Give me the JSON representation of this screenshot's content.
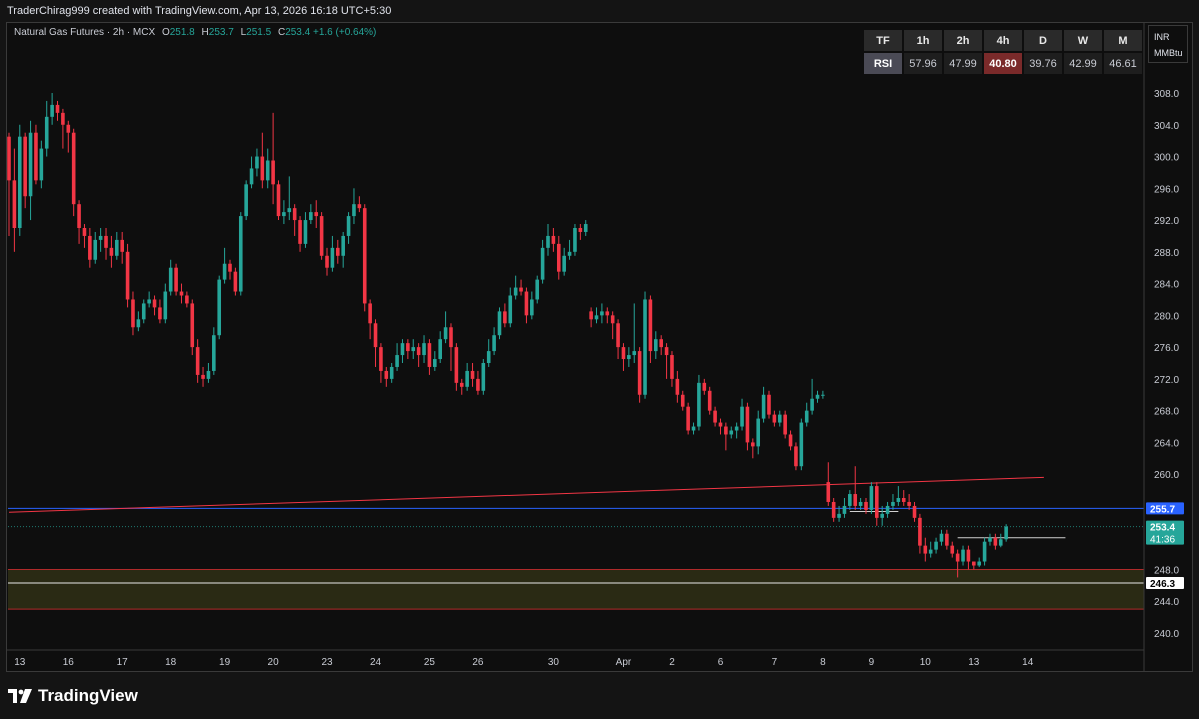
{
  "header": {
    "text": "TraderChirag999 created with TradingView.com, Apr 13, 2026 16:18 UTC+5:30"
  },
  "legend": {
    "symbol": "Natural Gas Futures · 2h · MCX",
    "open_label": "O",
    "open": "251.8",
    "high_label": "H",
    "high": "253.7",
    "low_label": "L",
    "low": "251.5",
    "close_label": "C",
    "close": "253.4",
    "change": "+1.6 (+0.64%)"
  },
  "rsi_table": {
    "header": [
      "TF",
      "1h",
      "2h",
      "4h",
      "D",
      "W",
      "M"
    ],
    "row_label": "RSI",
    "values": [
      "57.96",
      "47.99",
      "40.80",
      "39.76",
      "42.99",
      "46.61"
    ],
    "highlight_index": 3
  },
  "currency": {
    "ccy": "INR",
    "unit": "MMBtu"
  },
  "footer": {
    "brand": "TradingView"
  },
  "colors": {
    "up": "#26a69a",
    "down": "#f23645",
    "blue_line": "#2962ff",
    "trend_line": "#f23645",
    "zone_fill": "#2a2a14",
    "zone_border": "#b02a2a"
  },
  "chart_data": {
    "type": "candlestick",
    "ylim": [
      238,
      312
    ],
    "y_ticks": [
      308,
      304,
      300,
      296,
      292,
      288,
      284,
      280,
      276,
      272,
      268,
      264,
      260,
      248,
      244,
      240
    ],
    "x_ticks": [
      {
        "label": "13",
        "i": 2
      },
      {
        "label": "16",
        "i": 11
      },
      {
        "label": "17",
        "i": 21
      },
      {
        "label": "18",
        "i": 30
      },
      {
        "label": "19",
        "i": 40
      },
      {
        "label": "20",
        "i": 49
      },
      {
        "label": "23",
        "i": 59
      },
      {
        "label": "24",
        "i": 68
      },
      {
        "label": "25",
        "i": 78
      },
      {
        "label": "26",
        "i": 87
      },
      {
        "label": "30",
        "i": 101
      },
      {
        "label": "Apr",
        "i": 114
      },
      {
        "label": "2",
        "i": 123
      },
      {
        "label": "6",
        "i": 132
      },
      {
        "label": "7",
        "i": 142
      },
      {
        "label": "8",
        "i": 151
      },
      {
        "label": "9",
        "i": 160
      },
      {
        "label": "10",
        "i": 170
      },
      {
        "label": "13",
        "i": 179
      },
      {
        "label": "14",
        "i": 189
      }
    ],
    "candles": [
      [
        302.5,
        297.0,
        303.0,
        290.0
      ],
      [
        297.0,
        291.0,
        301.0,
        288.0
      ],
      [
        291.0,
        302.5,
        304.0,
        290.0
      ],
      [
        302.5,
        295.0,
        303.0,
        293.5
      ],
      [
        295.0,
        303.0,
        304.5,
        292.0
      ],
      [
        303.0,
        297.0,
        304.0,
        296.5
      ],
      [
        297.0,
        301.0,
        302.0,
        296.0
      ],
      [
        301.0,
        305.0,
        307.0,
        300.0
      ],
      [
        305.0,
        306.5,
        308.0,
        304.0
      ],
      [
        306.5,
        305.5,
        307.0,
        304.5
      ],
      [
        305.5,
        304.0,
        306.0,
        301.0
      ],
      [
        304.0,
        303.0,
        304.5,
        300.5
      ],
      [
        303.0,
        294.0,
        303.5,
        292.5
      ],
      [
        294.0,
        291.0,
        294.5,
        289.0
      ],
      [
        291.0,
        290.0,
        291.5,
        288.5
      ],
      [
        290.0,
        287.0,
        291.0,
        286.0
      ],
      [
        287.0,
        289.5,
        290.5,
        286.5
      ],
      [
        289.5,
        290.0,
        291.0,
        288.0
      ],
      [
        290.0,
        288.5,
        291.0,
        287.0
      ],
      [
        288.5,
        287.5,
        290.0,
        286.0
      ],
      [
        287.5,
        289.5,
        290.5,
        287.0
      ],
      [
        289.5,
        288.0,
        290.5,
        286.5
      ],
      [
        288.0,
        282.0,
        289.0,
        281.0
      ],
      [
        282.0,
        278.5,
        283.0,
        277.5
      ],
      [
        278.5,
        279.5,
        280.5,
        278.0
      ],
      [
        279.5,
        281.5,
        282.0,
        279.0
      ],
      [
        281.5,
        282.0,
        283.0,
        281.0
      ],
      [
        282.0,
        281.0,
        282.5,
        280.0
      ],
      [
        281.0,
        279.5,
        282.0,
        279.0
      ],
      [
        279.5,
        283.0,
        284.0,
        279.0
      ],
      [
        283.0,
        286.0,
        287.0,
        282.5
      ],
      [
        286.0,
        283.0,
        286.5,
        282.5
      ],
      [
        283.0,
        282.5,
        284.0,
        281.5
      ],
      [
        282.5,
        281.5,
        283.0,
        281.0
      ],
      [
        281.5,
        276.0,
        282.0,
        275.0
      ],
      [
        276.0,
        272.5,
        277.0,
        271.5
      ],
      [
        272.5,
        272.0,
        273.5,
        271.0
      ],
      [
        272.0,
        273.0,
        274.0,
        271.5
      ],
      [
        273.0,
        277.5,
        278.5,
        272.5
      ],
      [
        277.5,
        284.5,
        285.0,
        277.0
      ],
      [
        284.5,
        286.5,
        288.5,
        284.0
      ],
      [
        286.5,
        285.5,
        287.0,
        284.5
      ],
      [
        285.5,
        283.0,
        286.0,
        282.5
      ],
      [
        283.0,
        292.5,
        293.0,
        282.5
      ],
      [
        292.5,
        296.5,
        297.0,
        292.0
      ],
      [
        296.5,
        298.5,
        300.0,
        296.0
      ],
      [
        298.5,
        300.0,
        301.0,
        297.5
      ],
      [
        300.0,
        297.0,
        303.0,
        296.0
      ],
      [
        297.0,
        299.5,
        301.0,
        296.0
      ],
      [
        299.5,
        296.5,
        305.5,
        294.0
      ],
      [
        296.5,
        292.5,
        297.0,
        292.0
      ],
      [
        292.5,
        293.0,
        294.5,
        291.5
      ],
      [
        293.0,
        293.5,
        297.5,
        292.0
      ],
      [
        293.5,
        292.0,
        294.0,
        290.0
      ],
      [
        292.0,
        289.0,
        292.5,
        288.0
      ],
      [
        289.0,
        292.0,
        293.0,
        288.5
      ],
      [
        292.0,
        293.0,
        294.0,
        291.5
      ],
      [
        293.0,
        292.5,
        294.5,
        291.0
      ],
      [
        292.5,
        287.5,
        293.0,
        287.0
      ],
      [
        287.5,
        286.0,
        288.5,
        285.0
      ],
      [
        286.0,
        288.5,
        290.0,
        285.5
      ],
      [
        288.5,
        287.5,
        289.5,
        286.5
      ],
      [
        287.5,
        290.0,
        290.5,
        286.0
      ],
      [
        290.0,
        292.5,
        293.0,
        289.0
      ],
      [
        292.5,
        294.0,
        296.0,
        291.5
      ],
      [
        294.0,
        293.5,
        295.0,
        293.0
      ],
      [
        293.5,
        281.5,
        294.0,
        280.5
      ],
      [
        281.5,
        279.0,
        282.0,
        277.0
      ],
      [
        279.0,
        276.0,
        279.5,
        273.5
      ],
      [
        276.0,
        273.0,
        276.5,
        271.5
      ],
      [
        273.0,
        272.0,
        273.5,
        271.0
      ],
      [
        272.0,
        273.5,
        274.0,
        271.5
      ],
      [
        273.5,
        275.0,
        276.5,
        273.0
      ],
      [
        275.0,
        276.5,
        277.0,
        274.0
      ],
      [
        276.5,
        275.5,
        277.0,
        274.5
      ],
      [
        275.5,
        276.0,
        277.0,
        274.5
      ],
      [
        276.0,
        275.0,
        276.5,
        273.5
      ],
      [
        275.0,
        276.5,
        277.5,
        274.0
      ],
      [
        276.5,
        273.5,
        277.0,
        272.5
      ],
      [
        273.5,
        274.5,
        275.5,
        273.0
      ],
      [
        274.5,
        277.0,
        278.0,
        274.0
      ],
      [
        277.0,
        278.5,
        280.5,
        276.5
      ],
      [
        278.5,
        276.0,
        279.0,
        273.0
      ],
      [
        276.0,
        271.5,
        276.5,
        270.5
      ],
      [
        271.5,
        271.0,
        272.0,
        270.0
      ],
      [
        271.0,
        273.0,
        274.0,
        270.5
      ],
      [
        273.0,
        272.0,
        274.0,
        271.0
      ],
      [
        272.0,
        270.5,
        273.0,
        270.0
      ],
      [
        270.5,
        274.0,
        274.5,
        270.0
      ],
      [
        274.0,
        275.5,
        277.0,
        273.5
      ],
      [
        275.5,
        277.5,
        278.5,
        275.0
      ],
      [
        277.5,
        280.5,
        281.0,
        277.0
      ],
      [
        280.5,
        279.0,
        281.5,
        278.5
      ],
      [
        279.0,
        282.5,
        283.5,
        278.5
      ],
      [
        282.5,
        283.5,
        285.0,
        282.0
      ],
      [
        283.5,
        283.0,
        284.5,
        282.5
      ],
      [
        283.0,
        280.0,
        283.5,
        279.0
      ],
      [
        280.0,
        282.0,
        283.0,
        279.5
      ],
      [
        282.0,
        284.5,
        285.0,
        281.5
      ],
      [
        284.5,
        288.5,
        289.5,
        284.0
      ],
      [
        288.5,
        290.0,
        291.5,
        287.5
      ],
      [
        290.0,
        289.0,
        291.0,
        288.0
      ],
      [
        289.0,
        285.5,
        290.0,
        284.5
      ],
      [
        285.5,
        287.5,
        288.5,
        285.0
      ],
      [
        287.5,
        288.0,
        289.5,
        287.0
      ],
      [
        288.0,
        291.0,
        291.5,
        287.5
      ],
      [
        291.0,
        290.5,
        291.5,
        289.5
      ],
      [
        290.5,
        291.5,
        292.0,
        290.0
      ],
      [
        280.5,
        279.5,
        281.0,
        278.5
      ],
      [
        279.5,
        280.0,
        281.0,
        279.0
      ],
      [
        280.0,
        280.5,
        281.5,
        279.0
      ],
      [
        280.5,
        280.0,
        281.0,
        279.0
      ],
      [
        280.0,
        279.0,
        280.5,
        277.0
      ],
      [
        279.0,
        276.0,
        279.5,
        274.5
      ],
      [
        276.0,
        274.5,
        276.5,
        273.0
      ],
      [
        274.5,
        275.0,
        276.0,
        273.5
      ],
      [
        275.0,
        275.5,
        281.5,
        274.0
      ],
      [
        275.5,
        270.0,
        276.0,
        269.0
      ],
      [
        270.0,
        282.0,
        283.0,
        269.5
      ],
      [
        282.0,
        275.5,
        282.5,
        274.0
      ],
      [
        275.5,
        277.0,
        278.0,
        274.5
      ],
      [
        277.0,
        276.0,
        277.5,
        275.0
      ],
      [
        276.0,
        275.0,
        276.5,
        272.0
      ],
      [
        275.0,
        272.0,
        275.5,
        271.0
      ],
      [
        272.0,
        270.0,
        273.0,
        269.0
      ],
      [
        270.0,
        268.5,
        270.5,
        268.0
      ],
      [
        268.5,
        265.5,
        269.0,
        265.0
      ],
      [
        265.5,
        266.0,
        266.5,
        265.0
      ],
      [
        266.0,
        271.5,
        272.5,
        265.5
      ],
      [
        271.5,
        270.5,
        272.0,
        270.0
      ],
      [
        270.5,
        268.0,
        271.0,
        267.5
      ],
      [
        268.0,
        266.5,
        268.5,
        266.0
      ],
      [
        266.5,
        266.0,
        267.0,
        265.0
      ],
      [
        266.0,
        265.0,
        266.5,
        263.0
      ],
      [
        265.0,
        265.5,
        266.0,
        264.5
      ],
      [
        265.5,
        266.0,
        266.5,
        264.5
      ],
      [
        266.0,
        268.5,
        269.5,
        265.5
      ],
      [
        268.5,
        264.0,
        269.0,
        263.0
      ],
      [
        264.0,
        263.5,
        264.5,
        262.0
      ],
      [
        263.5,
        267.0,
        268.0,
        262.5
      ],
      [
        267.0,
        270.0,
        271.0,
        266.5
      ],
      [
        270.0,
        267.5,
        270.5,
        267.0
      ],
      [
        267.5,
        266.5,
        268.0,
        266.0
      ],
      [
        266.5,
        267.5,
        268.0,
        266.0
      ],
      [
        267.5,
        265.0,
        268.0,
        264.5
      ],
      [
        265.0,
        263.5,
        265.5,
        263.0
      ],
      [
        263.5,
        261.0,
        264.0,
        260.5
      ],
      [
        261.0,
        266.5,
        267.0,
        260.5
      ],
      [
        266.5,
        268.0,
        269.0,
        266.0
      ],
      [
        268.0,
        269.5,
        272.0,
        267.5
      ],
      [
        269.5,
        270.0,
        270.5,
        269.0
      ],
      [
        270.0,
        270.0,
        270.5,
        269.5
      ],
      [
        259.0,
        256.5,
        261.5,
        256.0
      ],
      [
        256.5,
        254.5,
        257.0,
        254.0
      ],
      [
        254.5,
        255.0,
        256.0,
        254.0
      ],
      [
        255.0,
        256.0,
        257.0,
        254.5
      ],
      [
        256.0,
        257.5,
        258.0,
        255.5
      ],
      [
        257.5,
        256.0,
        261.0,
        255.5
      ],
      [
        256.0,
        256.5,
        257.0,
        255.5
      ],
      [
        256.5,
        255.5,
        257.0,
        255.0
      ],
      [
        255.5,
        258.5,
        259.0,
        255.0
      ],
      [
        258.5,
        254.5,
        259.0,
        253.5
      ],
      [
        254.5,
        255.0,
        256.0,
        253.5
      ],
      [
        255.0,
        256.0,
        256.5,
        254.5
      ],
      [
        256.0,
        256.5,
        257.5,
        255.5
      ],
      [
        256.5,
        257.0,
        258.5,
        256.0
      ],
      [
        257.0,
        256.5,
        258.0,
        256.0
      ],
      [
        256.5,
        256.0,
        257.5,
        255.5
      ],
      [
        256.0,
        254.5,
        256.5,
        254.0
      ],
      [
        254.5,
        251.0,
        255.0,
        250.0
      ],
      [
        251.0,
        250.0,
        252.0,
        249.0
      ],
      [
        250.0,
        250.5,
        251.5,
        249.5
      ],
      [
        250.5,
        251.5,
        252.0,
        250.0
      ],
      [
        251.5,
        252.5,
        253.0,
        251.0
      ],
      [
        252.5,
        251.0,
        253.0,
        250.5
      ],
      [
        251.0,
        250.0,
        251.5,
        249.5
      ],
      [
        250.0,
        249.0,
        250.5,
        247.0
      ],
      [
        249.0,
        250.5,
        251.0,
        248.5
      ],
      [
        250.5,
        249.0,
        251.0,
        248.0
      ],
      [
        249.0,
        248.5,
        249.0,
        248.0
      ],
      [
        248.5,
        249.0,
        249.5,
        248.3
      ],
      [
        249.0,
        251.5,
        252.0,
        248.5
      ],
      [
        251.5,
        252.0,
        252.5,
        251.0
      ],
      [
        252.0,
        251.0,
        252.5,
        250.5
      ],
      [
        251.0,
        251.8,
        252.5,
        250.8
      ],
      [
        251.8,
        253.4,
        253.7,
        251.5
      ]
    ],
    "horizontal_lines": [
      {
        "name": "blue-level",
        "price": 255.7,
        "color": "#2962ff",
        "label": "255.7"
      },
      {
        "name": "white-level",
        "price": 246.3,
        "color": "#e8e8e8",
        "label": "246.3"
      },
      {
        "name": "current-price",
        "price": 253.4,
        "color": "#26a69a",
        "label": "253.4",
        "sublabel": "41:36",
        "dotted": true
      }
    ],
    "zones": [
      {
        "name": "demand-zone",
        "top": 248.0,
        "bottom": 243.0,
        "border": "#b02a2a"
      }
    ],
    "trend_line": {
      "i1": 0,
      "p1": 255.2,
      "i2": 192,
      "p2": 259.6,
      "color": "#f23645"
    },
    "short_levels": [
      {
        "i1": 156,
        "i2": 165,
        "price": 255.3
      },
      {
        "i1": 176,
        "i2": 196,
        "price": 252.0
      }
    ]
  }
}
